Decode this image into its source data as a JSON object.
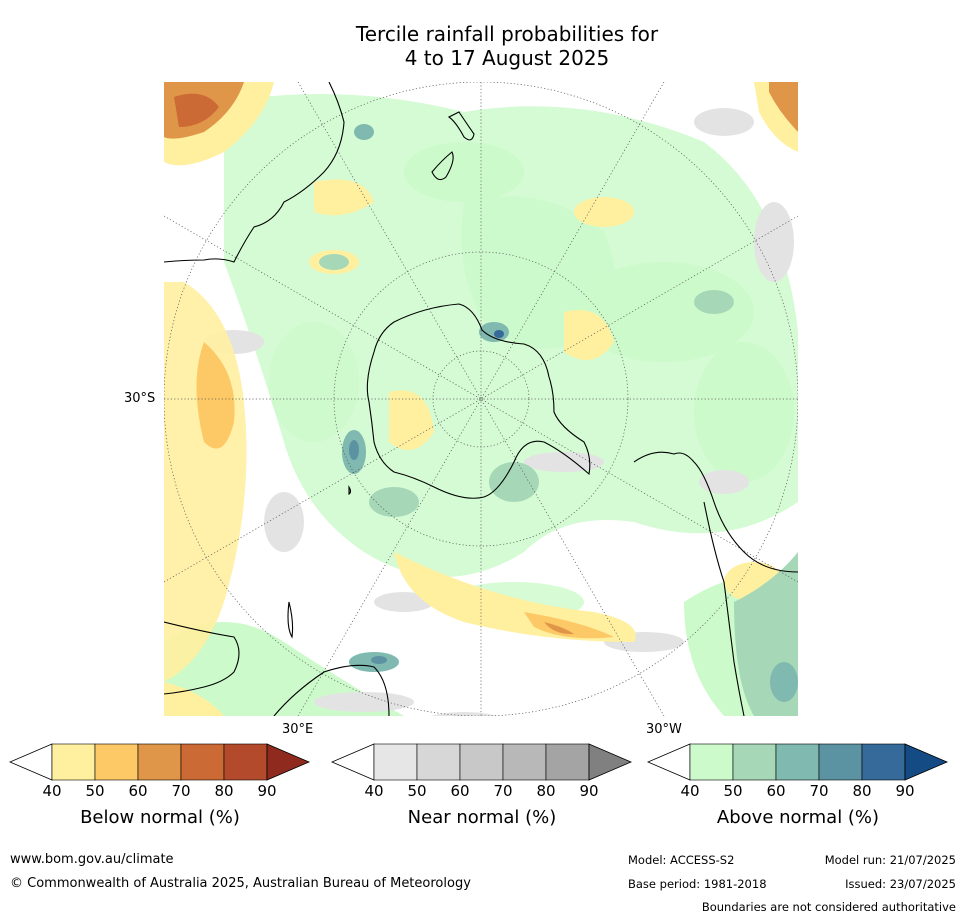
{
  "title_line1": "Tercile rainfall probabilities for",
  "title_line2": "4 to 17 August 2025",
  "map": {
    "lat_label": "30°S",
    "lon_label_east": "30°E",
    "lon_label_west": "30°W"
  },
  "colorbars": [
    {
      "label": "Below normal (%)",
      "ticks": [
        "40",
        "50",
        "60",
        "70",
        "80",
        "90"
      ],
      "colors": [
        "#fff0a0",
        "#fdc966",
        "#e09648",
        "#cc6a35",
        "#b44a2c",
        "#8f2b1e"
      ]
    },
    {
      "label": "Near normal (%)",
      "ticks": [
        "40",
        "50",
        "60",
        "70",
        "80",
        "90"
      ],
      "colors": [
        "#e6e6e6",
        "#d7d7d7",
        "#c8c8c8",
        "#b8b8b8",
        "#a4a4a4",
        "#808080"
      ]
    },
    {
      "label": "Above normal (%)",
      "ticks": [
        "40",
        "50",
        "60",
        "70",
        "80",
        "90"
      ],
      "colors": [
        "#ccfacb",
        "#a6d8b8",
        "#7fb9b0",
        "#5b93a3",
        "#356a9a",
        "#154b84"
      ]
    }
  ],
  "footer": {
    "url": "www.bom.gov.au/climate",
    "copyright": "© Commonwealth of Australia 2025, Australian Bureau of Meteorology",
    "model": "Model: ACCESS-S2",
    "model_run": "Model run: 21/07/2025",
    "base_period": "Base period: 1981-2018",
    "issued": "Issued: 23/07/2025",
    "disclaimer": "Boundaries are not considered authoritative"
  }
}
